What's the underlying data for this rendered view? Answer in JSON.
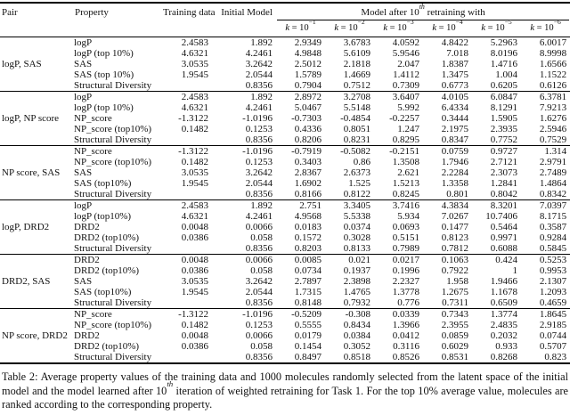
{
  "table": {
    "headers": {
      "pair": "Pair",
      "property": "Property",
      "training_data": "Training data",
      "initial_model": "Initial Model",
      "span_header": {
        "prefix": "Model after 10",
        "sup": "th",
        "suffix": " retraining with"
      },
      "k_var": "k",
      "k_base": " = 10",
      "k_exponents": [
        "−1",
        "−2",
        "−3",
        "−4",
        "−5",
        "−6"
      ]
    },
    "groups": [
      {
        "pair": "logP, SAS",
        "rows": [
          {
            "property": "logP",
            "values": [
              "2.4583",
              "1.892",
              "2.9349",
              "3.6783",
              "4.0592",
              "4.8422",
              "5.2963",
              "6.0017"
            ]
          },
          {
            "property": "logP (top 10%)",
            "values": [
              "4.6321",
              "4.2461",
              "4.9848",
              "5.6109",
              "5.9546",
              "7.018",
              "8.0196",
              "8.9998"
            ]
          },
          {
            "property": "SAS",
            "values": [
              "3.0535",
              "3.2642",
              "2.5012",
              "2.1818",
              "2.047",
              "1.8387",
              "1.4716",
              "1.6566"
            ]
          },
          {
            "property": "SAS (top 10%)",
            "values": [
              "1.9545",
              "2.0544",
              "1.5789",
              "1.4669",
              "1.4112",
              "1.3475",
              "1.004",
              "1.1522"
            ]
          },
          {
            "property": "Structural Diversity",
            "values": [
              "",
              "0.8356",
              "0.7904",
              "0.7512",
              "0.7309",
              "0.6773",
              "0.6205",
              "0.6126"
            ]
          }
        ]
      },
      {
        "pair": "logP, NP score",
        "rows": [
          {
            "property": "logP",
            "values": [
              "2.4583",
              "1.892",
              "2.8972",
              "3.2708",
              "3.6407",
              "4.0105",
              "6.0847",
              "6.3781"
            ]
          },
          {
            "property": "logP (top 10%)",
            "values": [
              "4.6321",
              "4.2461",
              "5.0467",
              "5.5148",
              "5.992",
              "6.4334",
              "8.1291",
              "7.9213"
            ]
          },
          {
            "property": "NP_score",
            "values": [
              "-1.3122",
              "-1.0196",
              "-0.7303",
              "-0.4854",
              "-0.2257",
              "0.3444",
              "1.5905",
              "1.6276"
            ]
          },
          {
            "property": "NP_score (top10%)",
            "values": [
              "0.1482",
              "0.1253",
              "0.4336",
              "0.8051",
              "1.247",
              "2.1975",
              "2.3935",
              "2.5946"
            ]
          },
          {
            "property": "Structural Diversity",
            "values": [
              "",
              "0.8356",
              "0.8206",
              "0.8231",
              "0.8295",
              "0.8347",
              "0.7752",
              "0.7529"
            ]
          }
        ]
      },
      {
        "pair": "NP score, SAS",
        "rows": [
          {
            "property": "NP_score",
            "values": [
              "-1.3122",
              "-1.0196",
              "-0.7919",
              "-0.5082",
              "-0.2151",
              "0.0759",
              "0.9727",
              "1.314"
            ]
          },
          {
            "property": "NP_score (top10%)",
            "values": [
              "0.1482",
              "0.1253",
              "0.3403",
              "0.86",
              "1.3508",
              "1.7946",
              "2.7121",
              "2.9791"
            ]
          },
          {
            "property": "SAS",
            "values": [
              "3.0535",
              "3.2642",
              "2.8367",
              "2.6373",
              "2.621",
              "2.2284",
              "2.3073",
              "2.7489"
            ]
          },
          {
            "property": "SAS (top10%)",
            "values": [
              "1.9545",
              "2.0544",
              "1.6902",
              "1.525",
              "1.5213",
              "1.3358",
              "1.2841",
              "1.4864"
            ]
          },
          {
            "property": "Structural Diversity",
            "values": [
              "",
              "0.8356",
              "0.8166",
              "0.8122",
              "0.8245",
              "0.801",
              "0.8042",
              "0.8342"
            ]
          }
        ]
      },
      {
        "pair": "logP, DRD2",
        "rows": [
          {
            "property": "logP",
            "values": [
              "2.4583",
              "1.892",
              "2.751",
              "3.3405",
              "3.7416",
              "4.3834",
              "8.3201",
              "7.0397"
            ]
          },
          {
            "property": "logP (top10%)",
            "values": [
              "4.6321",
              "4.2461",
              "4.9568",
              "5.5338",
              "5.934",
              "7.0267",
              "10.7406",
              "8.1715"
            ]
          },
          {
            "property": "DRD2",
            "values": [
              "0.0048",
              "0.0066",
              "0.0183",
              "0.0374",
              "0.0693",
              "0.1477",
              "0.5464",
              "0.3587"
            ]
          },
          {
            "property": "DRD2 (top10%)",
            "values": [
              "0.0386",
              "0.058",
              "0.1572",
              "0.3028",
              "0.5151",
              "0.8123",
              "0.9971",
              "0.9284"
            ]
          },
          {
            "property": "Structural Diversity",
            "values": [
              "",
              "0.8356",
              "0.8203",
              "0.8133",
              "0.7989",
              "0.7812",
              "0.6088",
              "0.5845"
            ]
          }
        ]
      },
      {
        "pair": "DRD2, SAS",
        "rows": [
          {
            "property": "DRD2",
            "values": [
              "0.0048",
              "0.0066",
              "0.0085",
              "0.021",
              "0.0217",
              "0.1063",
              "0.424",
              "0.5253"
            ]
          },
          {
            "property": "DRD2 (top10%)",
            "values": [
              "0.0386",
              "0.058",
              "0.0734",
              "0.1937",
              "0.1996",
              "0.7922",
              "1",
              "0.9953"
            ]
          },
          {
            "property": "SAS",
            "values": [
              "3.0535",
              "3.2642",
              "2.7897",
              "2.3898",
              "2.2327",
              "1.958",
              "1.9466",
              "2.1307"
            ]
          },
          {
            "property": "SAS (top10%)",
            "values": [
              "1.9545",
              "2.0544",
              "1.7315",
              "1.4765",
              "1.3778",
              "1.2675",
              "1.1678",
              "1.2093"
            ]
          },
          {
            "property": "Structural Diversity",
            "values": [
              "",
              "0.8356",
              "0.8148",
              "0.7932",
              "0.776",
              "0.7311",
              "0.6509",
              "0.4659"
            ]
          }
        ]
      },
      {
        "pair": "NP score, DRD2",
        "rows": [
          {
            "property": "NP_score",
            "values": [
              "-1.3122",
              "-1.0196",
              "-0.5209",
              "-0.308",
              "0.0339",
              "0.7343",
              "1.3774",
              "1.8645"
            ]
          },
          {
            "property": "NP_score (top10%)",
            "values": [
              "0.1482",
              "0.1253",
              "0.5555",
              "0.8434",
              "1.3966",
              "2.3955",
              "2.4835",
              "2.9185"
            ]
          },
          {
            "property": "DRD2",
            "values": [
              "0.0048",
              "0.0066",
              "0.0179",
              "0.0384",
              "0.0412",
              "0.0859",
              "0.2032",
              "0.0744"
            ]
          },
          {
            "property": "DRD2 (top10%)",
            "values": [
              "0.0386",
              "0.058",
              "0.1454",
              "0.3052",
              "0.3116",
              "0.6029",
              "0.933",
              "0.5707"
            ]
          },
          {
            "property": "Structural Diversity",
            "values": [
              "",
              "0.8356",
              "0.8497",
              "0.8518",
              "0.8526",
              "0.8531",
              "0.8268",
              "0.823"
            ]
          }
        ]
      }
    ]
  },
  "caption": {
    "prefix": "Table 2: Average property values of the training data and 1000 molecules randomly selected from the latent space of the initial model and the model learned after 10",
    "sup": "th",
    "suffix": " iteration of weighted retraining for Task 1. For the top 10% average value, molecules are ranked according to the corresponding property."
  }
}
